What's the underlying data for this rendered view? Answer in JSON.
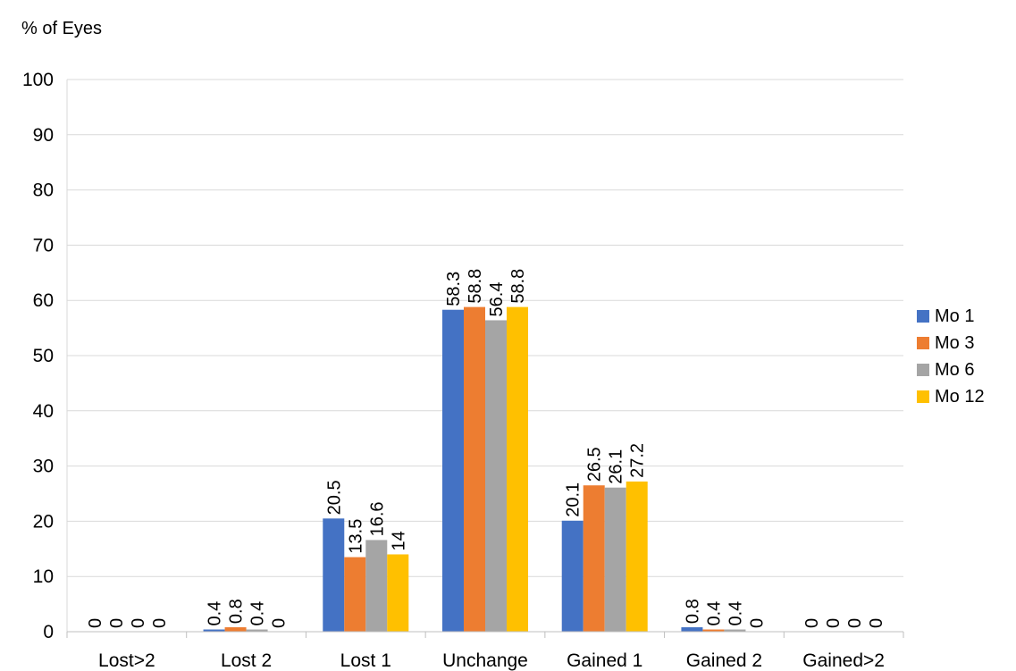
{
  "chart_data": {
    "type": "bar",
    "title": "",
    "ylabel": "% of Eyes",
    "xlabel": "",
    "ylim": [
      0,
      100
    ],
    "ytick_step": 10,
    "grid": true,
    "legend_position": "right",
    "categories": [
      "Lost>2",
      "Lost 2",
      "Lost 1",
      "Unchange",
      "Gained 1",
      "Gained 2",
      "Gained>2"
    ],
    "series": [
      {
        "name": "Mo 1",
        "color": "#4472C4",
        "values": [
          0,
          0.4,
          20.5,
          58.3,
          20.1,
          0.8,
          0
        ]
      },
      {
        "name": "Mo 3",
        "color": "#ED7D31",
        "values": [
          0,
          0.8,
          13.5,
          58.8,
          26.5,
          0.4,
          0
        ]
      },
      {
        "name": "Mo 6",
        "color": "#A5A5A5",
        "values": [
          0,
          0.4,
          16.6,
          56.4,
          26.1,
          0.4,
          0
        ]
      },
      {
        "name": "Mo 12",
        "color": "#FFC000",
        "values": [
          0,
          0,
          14,
          58.8,
          27.2,
          0,
          0
        ]
      }
    ]
  }
}
